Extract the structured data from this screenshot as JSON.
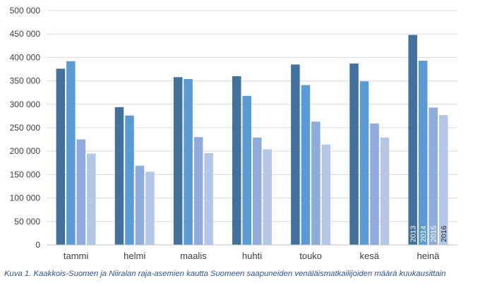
{
  "chart_data": {
    "type": "bar",
    "title": "",
    "xlabel": "",
    "ylabel": "",
    "categories": [
      "tammi",
      "helmi",
      "maalis",
      "huhti",
      "touko",
      "kesä",
      "heinä"
    ],
    "series": [
      {
        "name": "2013",
        "color": "#41719c",
        "values": [
          376000,
          294000,
          358000,
          360000,
          385000,
          387000,
          448000
        ]
      },
      {
        "name": "2014",
        "color": "#5b9bd5",
        "values": [
          392000,
          276000,
          354000,
          318000,
          341000,
          349000,
          393000
        ]
      },
      {
        "name": "2015",
        "color": "#8faadc",
        "values": [
          225000,
          169000,
          230000,
          229000,
          263000,
          259000,
          293000
        ]
      },
      {
        "name": "2016",
        "color": "#b4c7e7",
        "values": [
          195000,
          156000,
          196000,
          204000,
          214000,
          229000,
          277000
        ]
      }
    ],
    "ylim": [
      0,
      500000
    ],
    "yticks": [
      "0",
      "50 000",
      "100 000",
      "150 000",
      "200 000",
      "250 000",
      "300 000",
      "350 000",
      "400 000",
      "450 000",
      "500 000"
    ],
    "grid": true,
    "series_labels_in_category": "heinä"
  },
  "caption": "Kuva 1. Kaakkois-Suomen ja Niiralan raja-asemien kautta Suomeen saapuneiden venäläismatkailijoiden määrä kuukausittain"
}
